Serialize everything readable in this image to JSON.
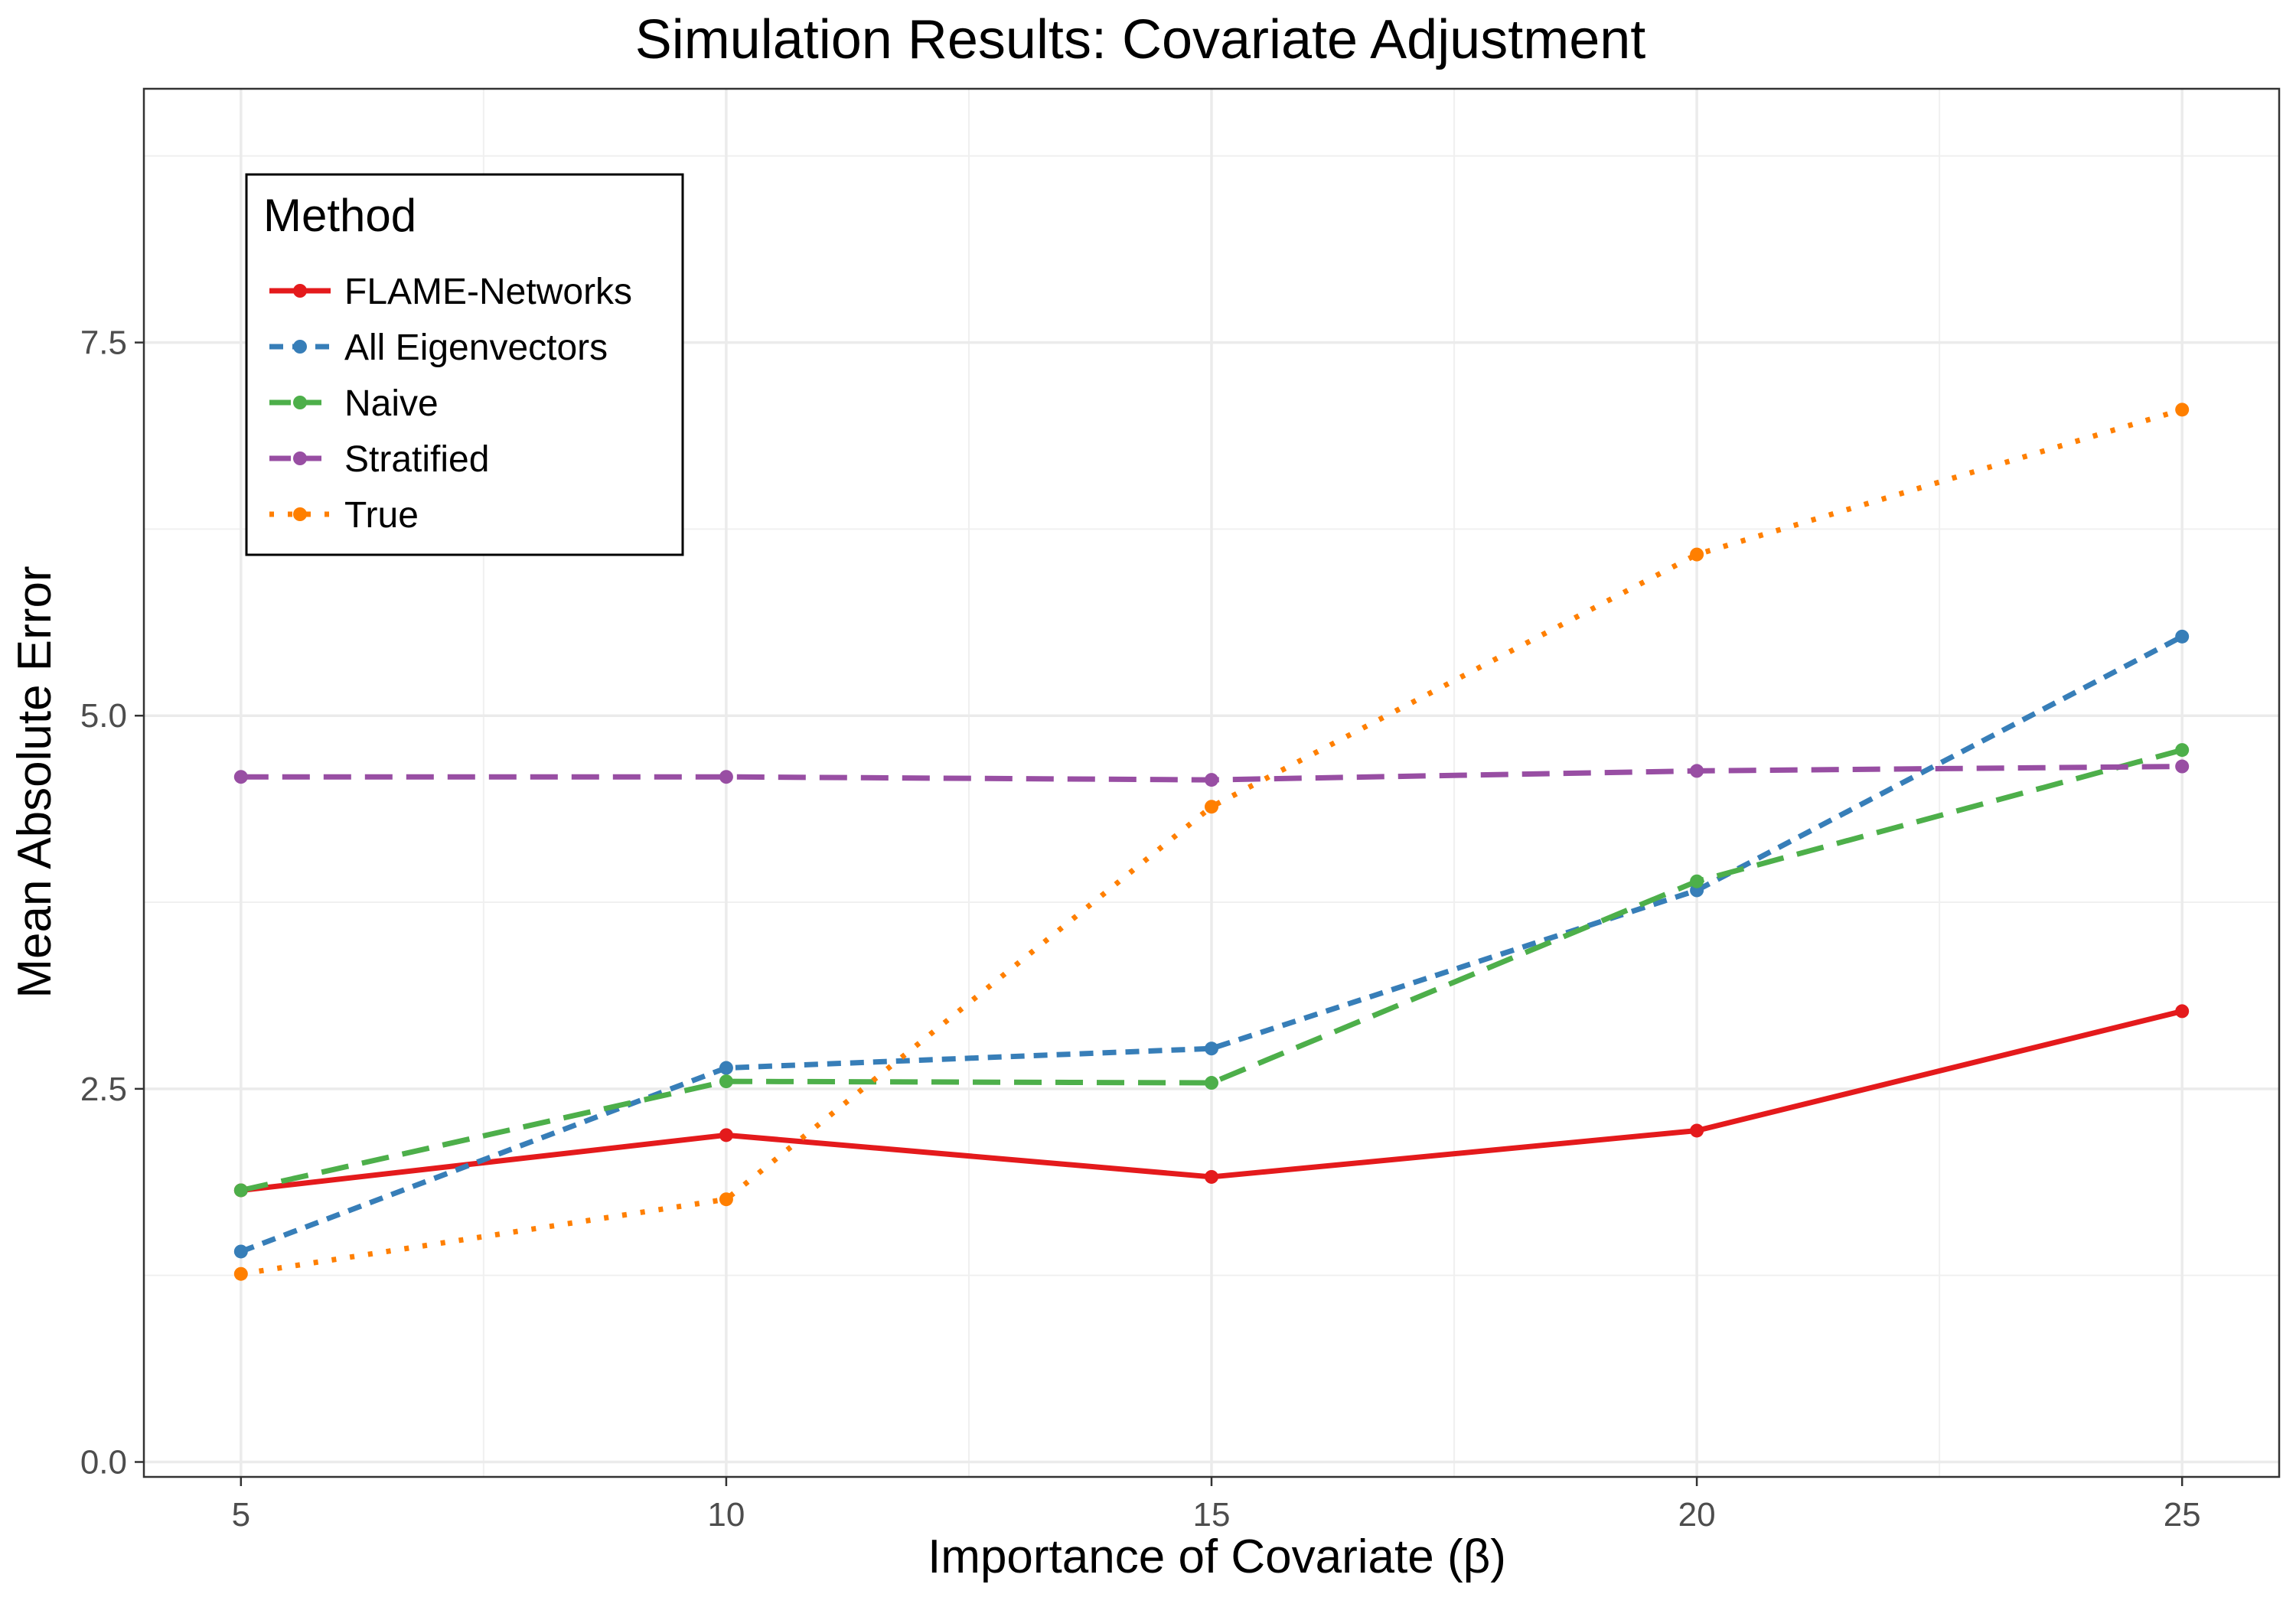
{
  "chart_data": {
    "type": "line",
    "title": "Simulation Results: Covariate Adjustment",
    "xlabel": "Importance of Covariate (β)",
    "ylabel": "Mean Absolute Error",
    "x": [
      5,
      10,
      15,
      20,
      25
    ],
    "xlim": [
      4,
      26
    ],
    "ylim": [
      -0.1,
      9.2
    ],
    "x_ticks": [
      "5",
      "10",
      "15",
      "20",
      "25"
    ],
    "y_ticks": [
      "0.0",
      "2.5",
      "5.0",
      "7.5"
    ],
    "grid": true,
    "legend": {
      "title": "Method",
      "position": "top-left"
    },
    "series": [
      {
        "name": "FLAME-Networks",
        "color": "#e41a1c",
        "dash": "solid",
        "values": [
          1.82,
          2.19,
          1.91,
          2.22,
          3.02
        ]
      },
      {
        "name": "All Eigenvectors",
        "color": "#377eb8",
        "dash": "dashed",
        "values": [
          1.41,
          2.64,
          2.77,
          3.83,
          5.53
        ]
      },
      {
        "name": "Naive",
        "color": "#4daf4a",
        "dash": "longdash",
        "values": [
          1.82,
          2.55,
          2.54,
          3.89,
          4.77
        ]
      },
      {
        "name": "Stratified",
        "color": "#984ea3",
        "dash": "longdash",
        "values": [
          4.59,
          4.59,
          4.57,
          4.63,
          4.66
        ]
      },
      {
        "name": "True",
        "color": "#ff7f00",
        "dash": "dotted",
        "values": [
          1.26,
          1.76,
          4.39,
          6.08,
          7.05
        ]
      }
    ]
  }
}
